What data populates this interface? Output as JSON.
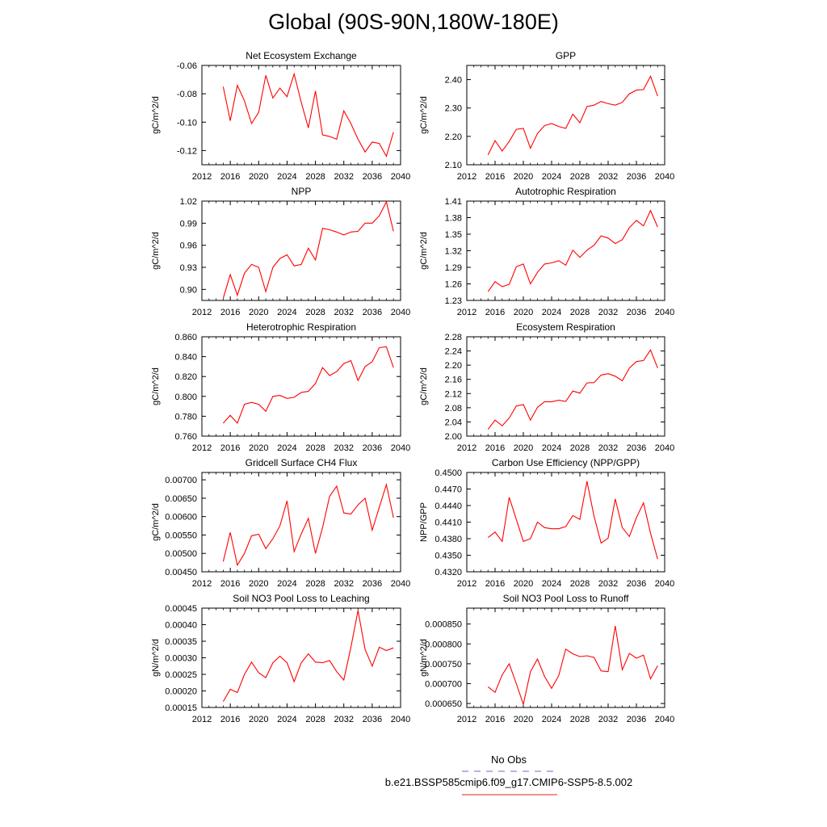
{
  "title": "Global (90S-90N,180W-180E)",
  "legend": {
    "obs_label": "No Obs",
    "obs_color": "#6b6bd6",
    "run_label": "b.e21.BSSP585cmip6.f09_g17.CMIP6-SSP5-8.5.002",
    "run_color": "#e02020"
  },
  "line_color": "#ff0000",
  "chart_data": [
    {
      "type": "line",
      "title": "Net Ecosystem Exchange",
      "ylabel": "gC/m^2/d",
      "xlim": [
        2012,
        2040
      ],
      "xticks": [
        "2012",
        "2016",
        "2020",
        "2024",
        "2028",
        "2032",
        "2036",
        "2040"
      ],
      "ylim": [
        -0.13,
        -0.06
      ],
      "yticks": [
        "-0.06",
        "-0.08",
        "-0.10",
        "-0.12"
      ],
      "ytick_values": [
        -0.06,
        -0.08,
        -0.1,
        -0.12
      ],
      "x": [
        2015,
        2016,
        2017,
        2018,
        2019,
        2020,
        2021,
        2022,
        2023,
        2024,
        2025,
        2026,
        2027,
        2028,
        2029,
        2030,
        2031,
        2032,
        2033,
        2034,
        2035,
        2036,
        2037,
        2038,
        2039
      ],
      "values": [
        -0.075,
        -0.099,
        -0.074,
        -0.085,
        -0.101,
        -0.093,
        -0.067,
        -0.083,
        -0.076,
        -0.082,
        -0.066,
        -0.086,
        -0.104,
        -0.078,
        -0.109,
        -0.11,
        -0.112,
        -0.092,
        -0.101,
        -0.112,
        -0.121,
        -0.114,
        -0.115,
        -0.124,
        -0.107
      ]
    },
    {
      "type": "line",
      "title": "GPP",
      "ylabel": "gC/m^2/d",
      "xlim": [
        2012,
        2040
      ],
      "xticks": [
        "2012",
        "2016",
        "2020",
        "2024",
        "2028",
        "2032",
        "2036",
        "2040"
      ],
      "ylim": [
        2.1,
        2.45
      ],
      "yticks": [
        "2.10",
        "2.20",
        "2.30",
        "2.40"
      ],
      "ytick_values": [
        2.1,
        2.2,
        2.3,
        2.4
      ],
      "x": [
        2015,
        2016,
        2017,
        2018,
        2019,
        2020,
        2021,
        2022,
        2023,
        2024,
        2025,
        2026,
        2027,
        2028,
        2029,
        2030,
        2031,
        2032,
        2033,
        2034,
        2035,
        2036,
        2037,
        2038,
        2039
      ],
      "values": [
        2.135,
        2.185,
        2.148,
        2.182,
        2.225,
        2.228,
        2.158,
        2.21,
        2.238,
        2.245,
        2.235,
        2.228,
        2.278,
        2.248,
        2.305,
        2.31,
        2.323,
        2.315,
        2.31,
        2.32,
        2.35,
        2.363,
        2.365,
        2.412,
        2.342
      ]
    },
    {
      "type": "line",
      "title": "NPP",
      "ylabel": "gC/m^2/d",
      "xlim": [
        2012,
        2040
      ],
      "xticks": [
        "2012",
        "2016",
        "2020",
        "2024",
        "2028",
        "2032",
        "2036",
        "2040"
      ],
      "ylim": [
        0.885,
        1.02
      ],
      "yticks": [
        "0.90",
        "0.93",
        "0.96",
        "0.99",
        "1.02"
      ],
      "ytick_values": [
        0.9,
        0.93,
        0.96,
        0.99,
        1.02
      ],
      "x": [
        2015,
        2016,
        2017,
        2018,
        2019,
        2020,
        2021,
        2022,
        2023,
        2024,
        2025,
        2026,
        2027,
        2028,
        2029,
        2030,
        2031,
        2032,
        2033,
        2034,
        2035,
        2036,
        2037,
        2038,
        2039
      ],
      "values": [
        0.888,
        0.92,
        0.892,
        0.922,
        0.934,
        0.93,
        0.897,
        0.93,
        0.942,
        0.947,
        0.932,
        0.934,
        0.956,
        0.94,
        0.983,
        0.981,
        0.978,
        0.974,
        0.978,
        0.979,
        0.99,
        0.99,
        1.0,
        1.019,
        0.979
      ]
    },
    {
      "type": "line",
      "title": "Autotrophic Respiration",
      "ylabel": "gC/m^2/d",
      "xlim": [
        2012,
        2040
      ],
      "xticks": [
        "2012",
        "2016",
        "2020",
        "2024",
        "2028",
        "2032",
        "2036",
        "2040"
      ],
      "ylim": [
        1.23,
        1.41
      ],
      "yticks": [
        "1.23",
        "1.26",
        "1.29",
        "1.32",
        "1.35",
        "1.38",
        "1.41"
      ],
      "ytick_values": [
        1.23,
        1.26,
        1.29,
        1.32,
        1.35,
        1.38,
        1.41
      ],
      "x": [
        2015,
        2016,
        2017,
        2018,
        2019,
        2020,
        2021,
        2022,
        2023,
        2024,
        2025,
        2026,
        2027,
        2028,
        2029,
        2030,
        2031,
        2032,
        2033,
        2034,
        2035,
        2036,
        2037,
        2038,
        2039
      ],
      "values": [
        1.246,
        1.264,
        1.255,
        1.259,
        1.291,
        1.296,
        1.26,
        1.281,
        1.296,
        1.298,
        1.302,
        1.294,
        1.321,
        1.308,
        1.321,
        1.33,
        1.347,
        1.343,
        1.333,
        1.34,
        1.362,
        1.375,
        1.365,
        1.393,
        1.363
      ]
    },
    {
      "type": "line",
      "title": "Heterotrophic Respiration",
      "ylabel": "gC/m^2/d",
      "xlim": [
        2012,
        2040
      ],
      "xticks": [
        "2012",
        "2016",
        "2020",
        "2024",
        "2028",
        "2032",
        "2036",
        "2040"
      ],
      "ylim": [
        0.76,
        0.86
      ],
      "yticks": [
        "0.760",
        "0.780",
        "0.800",
        "0.820",
        "0.840",
        "0.860"
      ],
      "ytick_values": [
        0.76,
        0.78,
        0.8,
        0.82,
        0.84,
        0.86
      ],
      "x": [
        2015,
        2016,
        2017,
        2018,
        2019,
        2020,
        2021,
        2022,
        2023,
        2024,
        2025,
        2026,
        2027,
        2028,
        2029,
        2030,
        2031,
        2032,
        2033,
        2034,
        2035,
        2036,
        2037,
        2038,
        2039
      ],
      "values": [
        0.773,
        0.781,
        0.773,
        0.792,
        0.794,
        0.792,
        0.785,
        0.8,
        0.801,
        0.798,
        0.799,
        0.804,
        0.805,
        0.813,
        0.829,
        0.821,
        0.825,
        0.833,
        0.836,
        0.816,
        0.83,
        0.835,
        0.849,
        0.85,
        0.829
      ]
    },
    {
      "type": "line",
      "title": "Ecosystem Respiration",
      "ylabel": "gC/m^2/d",
      "xlim": [
        2012,
        2040
      ],
      "xticks": [
        "2012",
        "2016",
        "2020",
        "2024",
        "2028",
        "2032",
        "2036",
        "2040"
      ],
      "ylim": [
        2.0,
        2.28
      ],
      "yticks": [
        "2.00",
        "2.04",
        "2.08",
        "2.12",
        "2.16",
        "2.20",
        "2.24",
        "2.28"
      ],
      "ytick_values": [
        2.0,
        2.04,
        2.08,
        2.12,
        2.16,
        2.2,
        2.24,
        2.28
      ],
      "x": [
        2015,
        2016,
        2017,
        2018,
        2019,
        2020,
        2021,
        2022,
        2023,
        2024,
        2025,
        2026,
        2027,
        2028,
        2029,
        2030,
        2031,
        2032,
        2033,
        2034,
        2035,
        2036,
        2037,
        2038,
        2039
      ],
      "values": [
        2.019,
        2.045,
        2.029,
        2.051,
        2.085,
        2.089,
        2.045,
        2.081,
        2.097,
        2.097,
        2.101,
        2.098,
        2.127,
        2.121,
        2.15,
        2.151,
        2.172,
        2.176,
        2.169,
        2.156,
        2.192,
        2.21,
        2.213,
        2.243,
        2.192
      ]
    },
    {
      "type": "line",
      "title": "Gridcell Surface CH4 Flux",
      "ylabel": "gC/m^2/d",
      "xlim": [
        2012,
        2040
      ],
      "xticks": [
        "2012",
        "2016",
        "2020",
        "2024",
        "2028",
        "2032",
        "2036",
        "2040"
      ],
      "ylim": [
        0.0045,
        0.0072
      ],
      "yticks": [
        "0.00450",
        "0.00500",
        "0.00550",
        "0.00600",
        "0.00650",
        "0.00700"
      ],
      "ytick_values": [
        0.0045,
        0.005,
        0.0055,
        0.006,
        0.0065,
        0.007
      ],
      "x": [
        2015,
        2016,
        2017,
        2018,
        2019,
        2020,
        2021,
        2022,
        2023,
        2024,
        2025,
        2026,
        2027,
        2028,
        2029,
        2030,
        2031,
        2032,
        2033,
        2034,
        2035,
        2036,
        2037,
        2038,
        2039
      ],
      "values": [
        0.00478,
        0.00557,
        0.00468,
        0.005,
        0.00548,
        0.00552,
        0.00513,
        0.0054,
        0.00575,
        0.00643,
        0.00505,
        0.00553,
        0.00595,
        0.005,
        0.0057,
        0.00655,
        0.00683,
        0.0061,
        0.00607,
        0.00632,
        0.0065,
        0.00563,
        0.00625,
        0.00687,
        0.00597
      ]
    },
    {
      "type": "line",
      "title": "Carbon Use Efficiency (NPP/GPP)",
      "ylabel": "NPP/GPP",
      "xlim": [
        2012,
        2040
      ],
      "xticks": [
        "2012",
        "2016",
        "2020",
        "2024",
        "2028",
        "2032",
        "2036",
        "2040"
      ],
      "ylim": [
        0.432,
        0.45
      ],
      "yticks": [
        "0.4320",
        "0.4350",
        "0.4380",
        "0.4410",
        "0.4440",
        "0.4470",
        "0.4500"
      ],
      "ytick_values": [
        0.432,
        0.435,
        0.438,
        0.441,
        0.444,
        0.447,
        0.45
      ],
      "x": [
        2015,
        2016,
        2017,
        2018,
        2019,
        2020,
        2021,
        2022,
        2023,
        2024,
        2025,
        2026,
        2027,
        2028,
        2029,
        2030,
        2031,
        2032,
        2033,
        2034,
        2035,
        2036,
        2037,
        2038,
        2039
      ],
      "values": [
        0.4382,
        0.4392,
        0.4375,
        0.4455,
        0.4415,
        0.4375,
        0.438,
        0.441,
        0.44,
        0.4398,
        0.4398,
        0.4402,
        0.4422,
        0.4415,
        0.4484,
        0.4421,
        0.4372,
        0.4381,
        0.4452,
        0.44,
        0.4384,
        0.4418,
        0.4445,
        0.439,
        0.4343
      ]
    },
    {
      "type": "line",
      "title": "Soil NO3 Pool Loss to Leaching",
      "ylabel": "gN/m^2/d",
      "xlim": [
        2012,
        2040
      ],
      "xticks": [
        "2012",
        "2016",
        "2020",
        "2024",
        "2028",
        "2032",
        "2036",
        "2040"
      ],
      "ylim": [
        0.00015,
        0.00045
      ],
      "yticks": [
        "0.00015",
        "0.00020",
        "0.00025",
        "0.00030",
        "0.00035",
        "0.00040",
        "0.00045"
      ],
      "ytick_values": [
        0.00015,
        0.0002,
        0.00025,
        0.0003,
        0.00035,
        0.0004,
        0.00045
      ],
      "x": [
        2015,
        2016,
        2017,
        2018,
        2019,
        2020,
        2021,
        2022,
        2023,
        2024,
        2025,
        2026,
        2027,
        2028,
        2029,
        2030,
        2031,
        2032,
        2033,
        2034,
        2035,
        2036,
        2037,
        2038,
        2039
      ],
      "values": [
        0.000168,
        0.000205,
        0.000195,
        0.00025,
        0.000287,
        0.000255,
        0.00024,
        0.000285,
        0.000305,
        0.000285,
        0.000228,
        0.000285,
        0.000312,
        0.000287,
        0.000285,
        0.000292,
        0.000258,
        0.000233,
        0.000332,
        0.000443,
        0.000325,
        0.000275,
        0.000332,
        0.000322,
        0.00033
      ]
    },
    {
      "type": "line",
      "title": "Soil NO3 Pool Loss to Runoff",
      "ylabel": "gN/m^2/d",
      "xlim": [
        2012,
        2040
      ],
      "xticks": [
        "2012",
        "2016",
        "2020",
        "2024",
        "2028",
        "2032",
        "2036",
        "2040"
      ],
      "ylim": [
        0.00064,
        0.00089
      ],
      "yticks": [
        "0.000650",
        "0.000700",
        "0.000750",
        "0.000800",
        "0.000850"
      ],
      "ytick_values": [
        0.00065,
        0.0007,
        0.00075,
        0.0008,
        0.00085
      ],
      "x": [
        2015,
        2016,
        2017,
        2018,
        2019,
        2020,
        2021,
        2022,
        2023,
        2024,
        2025,
        2026,
        2027,
        2028,
        2029,
        2030,
        2031,
        2032,
        2033,
        2034,
        2035,
        2036,
        2037,
        2038,
        2039
      ],
      "values": [
        0.000692,
        0.000678,
        0.000722,
        0.00075,
        0.0007,
        0.000648,
        0.00073,
        0.000762,
        0.000718,
        0.000688,
        0.00072,
        0.000787,
        0.000775,
        0.000768,
        0.00077,
        0.000766,
        0.000732,
        0.00073,
        0.000845,
        0.000735,
        0.000776,
        0.000764,
        0.000772,
        0.000712,
        0.000745
      ]
    }
  ]
}
